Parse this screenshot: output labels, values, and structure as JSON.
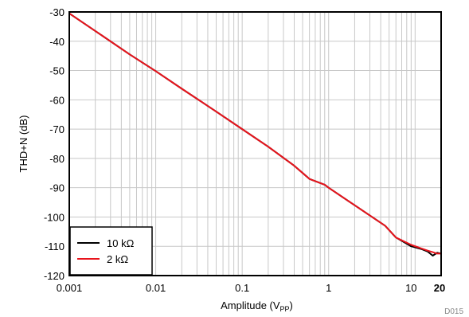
{
  "chart_data": {
    "type": "line",
    "ylabel": "THD+N (dB)",
    "xlabel": {
      "prefix": "Amplitude (V",
      "subscript": "PP",
      "suffix": ")"
    },
    "x_scale": "log",
    "xlim": [
      0.001,
      20
    ],
    "ylim": [
      -120,
      -30
    ],
    "x_ticks": [
      {
        "value": 0.001,
        "label": "0.001"
      },
      {
        "value": 0.01,
        "label": "0.01"
      },
      {
        "value": 0.1,
        "label": "0.1"
      },
      {
        "value": 1,
        "label": "1"
      },
      {
        "value": 10,
        "label": "10"
      },
      {
        "value": 20,
        "label": "20"
      }
    ],
    "y_ticks": [
      {
        "value": -30,
        "label": "-30"
      },
      {
        "value": -40,
        "label": "-40"
      },
      {
        "value": -50,
        "label": "-50"
      },
      {
        "value": -60,
        "label": "-60"
      },
      {
        "value": -70,
        "label": "-70"
      },
      {
        "value": -80,
        "label": "-80"
      },
      {
        "value": -90,
        "label": "-90"
      },
      {
        "value": -100,
        "label": "-100"
      },
      {
        "value": -110,
        "label": "-110"
      },
      {
        "value": -120,
        "label": "-120"
      }
    ],
    "grid": true,
    "legend_position": "bottom-left",
    "series": [
      {
        "name": "10 kΩ",
        "color": "#000000",
        "x": [
          0.001,
          0.002,
          0.005,
          0.01,
          0.02,
          0.05,
          0.1,
          0.2,
          0.4,
          0.6,
          0.9,
          1.0,
          2.0,
          4.5,
          6.0,
          9.0,
          12.0,
          14.0,
          16.0,
          18.0,
          20.0
        ],
        "y": [
          -30.5,
          -36.5,
          -44.5,
          -50.2,
          -56.2,
          -64.0,
          -70.0,
          -76.0,
          -82.5,
          -87.0,
          -89.0,
          -90.0,
          -96.0,
          -103.0,
          -107.0,
          -110.0,
          -111.0,
          -111.8,
          -113.2,
          -112.2,
          -112.5
        ]
      },
      {
        "name": "2 kΩ",
        "color": "#e8141c",
        "x": [
          0.001,
          0.002,
          0.005,
          0.01,
          0.02,
          0.05,
          0.1,
          0.2,
          0.4,
          0.6,
          0.9,
          1.0,
          2.0,
          4.5,
          6.0,
          9.0,
          12.0,
          14.0,
          16.0,
          18.0,
          20.0
        ],
        "y": [
          -30.5,
          -36.5,
          -44.5,
          -50.2,
          -56.2,
          -64.0,
          -70.0,
          -76.0,
          -82.5,
          -87.0,
          -89.0,
          -90.0,
          -96.0,
          -103.0,
          -107.0,
          -109.5,
          -110.8,
          -111.5,
          -112.0,
          -112.5,
          -112.5
        ]
      }
    ],
    "footnote": "D015"
  }
}
